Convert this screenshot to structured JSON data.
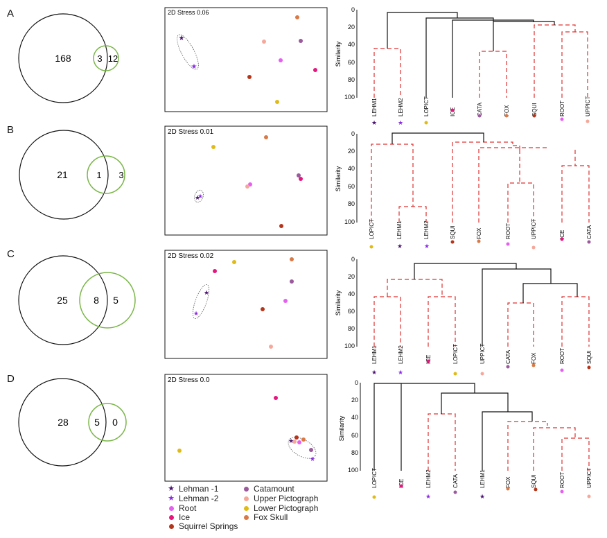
{
  "colors": {
    "lehman1": "#4b1470",
    "lehman2": "#8a2be2",
    "root": "#e55ff0",
    "ice": "#e6167e",
    "squirrel": "#b5351a",
    "catamount": "#9a5a9c",
    "upperpict": "#f5a89a",
    "lowerpict": "#e0bb17",
    "foxskull": "#d97a46",
    "venn_black": "#111111",
    "venn_green": "#7ab648",
    "dend_red": "#e03030",
    "dend_black": "#111111"
  },
  "panels": [
    {
      "label": "A",
      "venn": {
        "left_only": "168",
        "overlap": "3",
        "right_only": "12"
      },
      "stress": "2D Stress 0.06",
      "dendrogram": {
        "axis_label": "Similarity",
        "ticks": [
          "0",
          "20",
          "40",
          "60",
          "80",
          "100"
        ],
        "leaves": [
          {
            "name": "LEHM1",
            "site": "lehman1"
          },
          {
            "name": "LEHM2",
            "site": "lehman2"
          },
          {
            "name": "LOPICT",
            "site": "lowerpict"
          },
          {
            "name": "ICE",
            "site": "ice"
          },
          {
            "name": "CATA",
            "site": "catamount"
          },
          {
            "name": "FOX",
            "site": "foxskull"
          },
          {
            "name": "SQUI",
            "site": "squirrel"
          },
          {
            "name": "ROOT",
            "site": "root"
          },
          {
            "name": "UPPICT",
            "site": "upperpict"
          }
        ]
      }
    },
    {
      "label": "B",
      "venn": {
        "left_only": "21",
        "overlap": "1",
        "right_only": "3"
      },
      "stress": "2D Stress 0.01",
      "dendrogram": {
        "axis_label": "Similarity",
        "ticks": [
          "0",
          "20",
          "40",
          "60",
          "80",
          "100"
        ],
        "leaves": [
          {
            "name": "LOPICT",
            "site": "lowerpict"
          },
          {
            "name": "LEHM1",
            "site": "lehman1"
          },
          {
            "name": "LEHM2",
            "site": "lehman2"
          },
          {
            "name": "SQUI",
            "site": "squirrel"
          },
          {
            "name": "FOX",
            "site": "foxskull"
          },
          {
            "name": "ROOT",
            "site": "root"
          },
          {
            "name": "UPPICT",
            "site": "upperpict"
          },
          {
            "name": "ICE",
            "site": "ice"
          },
          {
            "name": "CATA",
            "site": "catamount"
          }
        ]
      }
    },
    {
      "label": "C",
      "venn": {
        "left_only": "25",
        "overlap": "8",
        "right_only": "5"
      },
      "stress": "2D Stress 0.02",
      "dendrogram": {
        "axis_label": "Similarity",
        "ticks": [
          "0",
          "20",
          "40",
          "60",
          "80",
          "100"
        ],
        "leaves": [
          {
            "name": "LEHM1",
            "site": "lehman1"
          },
          {
            "name": "LEHM2",
            "site": "lehman2"
          },
          {
            "name": "ICE",
            "site": "ice"
          },
          {
            "name": "LOPICT",
            "site": "lowerpict"
          },
          {
            "name": "UPPICT",
            "site": "upperpict"
          },
          {
            "name": "CATA",
            "site": "catamount"
          },
          {
            "name": "FOX",
            "site": "foxskull"
          },
          {
            "name": "ROOT",
            "site": "root"
          },
          {
            "name": "SQUI",
            "site": "squirrel"
          }
        ]
      }
    },
    {
      "label": "D",
      "venn": {
        "left_only": "28",
        "overlap": "5",
        "right_only": "0"
      },
      "stress": "2D Stress 0.0",
      "dendrogram": {
        "axis_label": "Similarity",
        "ticks": [
          "0",
          "20",
          "40",
          "60",
          "80",
          "100"
        ],
        "leaves": [
          {
            "name": "LOPICT",
            "site": "lowerpict"
          },
          {
            "name": "ICE",
            "site": "ice"
          },
          {
            "name": "LEHM2",
            "site": "lehman2"
          },
          {
            "name": "CATA",
            "site": "catamount"
          },
          {
            "name": "LEHM1",
            "site": "lehman1"
          },
          {
            "name": "FOX",
            "site": "foxskull"
          },
          {
            "name": "SQUI",
            "site": "squirrel"
          },
          {
            "name": "ROOT",
            "site": "root"
          },
          {
            "name": "UPPICT",
            "site": "upperpict"
          }
        ]
      }
    }
  ],
  "legend": {
    "lehman1": "Lehman -1",
    "lehman2": "Lehman -2",
    "root": "Root",
    "ice": "Ice",
    "squirrel": "Squirrel Springs",
    "catamount": "Catamount",
    "upperpict": "Upper Pictograph",
    "lowerpict": "Lower Pictograph",
    "foxskull": "Fox Skull"
  }
}
